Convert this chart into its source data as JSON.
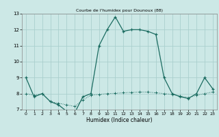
{
  "title": "Courbe de l'humidex pour Dounoux (88)",
  "xlabel": "Humidex (Indice chaleur)",
  "xlim": [
    -0.5,
    23.5
  ],
  "ylim": [
    7,
    13
  ],
  "yticks": [
    7,
    8,
    9,
    10,
    11,
    12,
    13
  ],
  "xticks": [
    0,
    1,
    2,
    3,
    4,
    5,
    6,
    7,
    8,
    9,
    10,
    11,
    12,
    13,
    14,
    15,
    16,
    17,
    18,
    19,
    20,
    21,
    22,
    23
  ],
  "bg_color": "#cce8e6",
  "grid_color": "#aacfcd",
  "line_color": "#1a6b60",
  "series1_x": [
    0,
    1,
    2,
    3,
    4,
    5,
    6,
    7,
    8,
    9,
    10,
    11,
    12,
    13,
    14,
    15,
    16,
    17,
    18,
    19,
    20,
    21,
    22,
    23
  ],
  "series1_y": [
    9,
    7.8,
    8.0,
    7.5,
    7.3,
    6.9,
    6.8,
    7.8,
    8.0,
    11.0,
    12.0,
    12.8,
    11.9,
    12.0,
    12.0,
    11.9,
    11.7,
    9.0,
    8.0,
    7.8,
    7.7,
    8.0,
    9.0,
    8.3
  ],
  "series2_x": [
    0,
    1,
    2,
    3,
    4,
    5,
    6,
    7,
    8,
    9,
    10,
    11,
    12,
    13,
    14,
    15,
    16,
    17,
    18,
    19,
    20,
    21,
    22,
    23
  ],
  "series2_y": [
    8.0,
    7.9,
    8.0,
    7.5,
    7.4,
    7.3,
    7.2,
    7.6,
    7.9,
    7.95,
    8.0,
    8.02,
    8.05,
    8.08,
    8.1,
    8.1,
    8.05,
    8.0,
    7.95,
    7.85,
    7.75,
    7.9,
    8.0,
    8.1
  ]
}
